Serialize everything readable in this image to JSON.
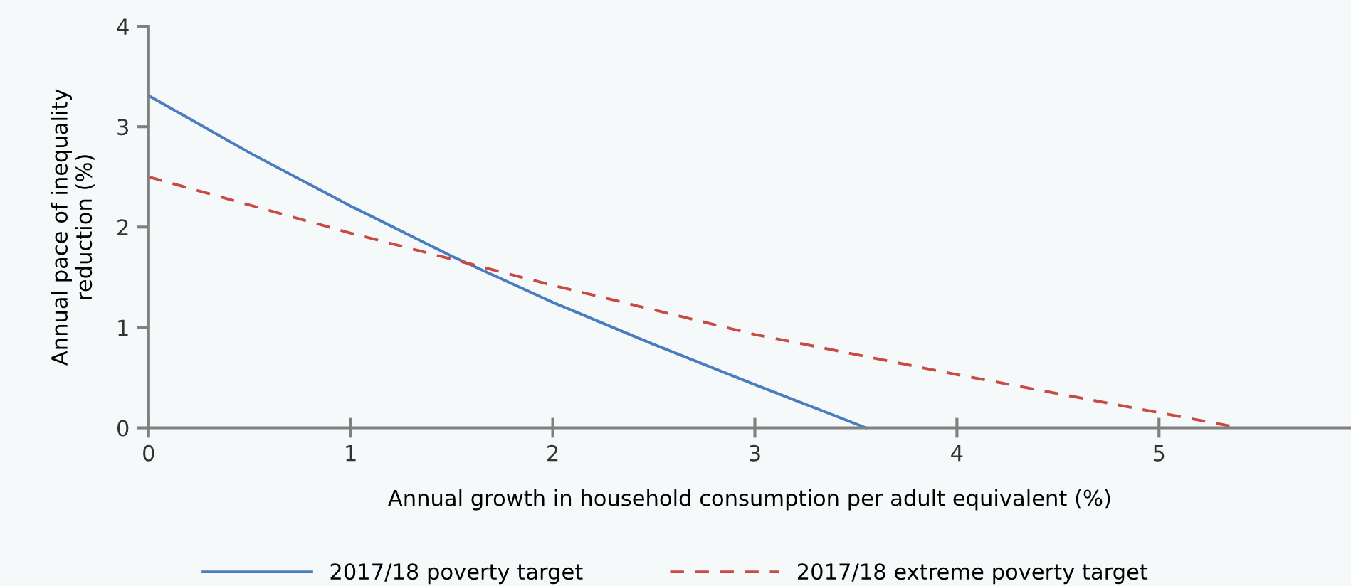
{
  "chart_data": {
    "type": "line",
    "xlabel": "Annual growth in household consumption per adult equivalent (%)",
    "ylabel": "Annual pace of inequality\nreduction (%)",
    "xlim": [
      0,
      5.95
    ],
    "xticks": [
      0,
      1,
      2,
      3,
      4,
      5
    ],
    "ylim": [
      0,
      4
    ],
    "yticks": [
      0,
      1,
      2,
      3,
      4
    ],
    "grid": false,
    "legend": "bottom",
    "marker": "none",
    "series": [
      {
        "name": "2017/18 poverty target",
        "color": "#4a7cc0",
        "line_style": "solid",
        "x": [
          0,
          0.5,
          1,
          1.5,
          2,
          2.5,
          3,
          3.55
        ],
        "values": [
          3.31,
          2.74,
          2.21,
          1.71,
          1.25,
          0.83,
          0.43,
          0
        ]
      },
      {
        "name": "2017/18 extreme poverty target",
        "color": "#c94a45",
        "line_style": "dashed",
        "x": [
          0,
          1,
          2,
          3,
          4,
          5,
          5.4
        ],
        "values": [
          2.5,
          1.94,
          1.42,
          0.93,
          0.53,
          0.15,
          0
        ]
      }
    ]
  }
}
